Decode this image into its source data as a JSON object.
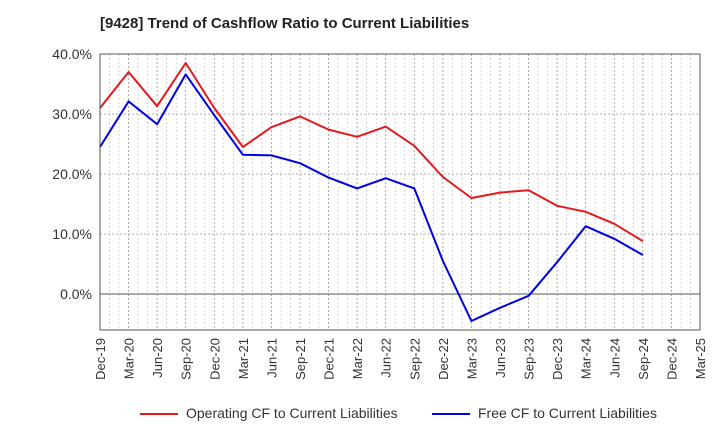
{
  "chart_data": {
    "type": "line",
    "title": "[9428]  Trend of Cashflow Ratio to Current Liabilities",
    "xlabel": "",
    "ylabel": "",
    "ylim": [
      -6,
      40
    ],
    "y_ticks": [
      "40.0%",
      "30.0%",
      "20.0%",
      "10.0%",
      "0.0%"
    ],
    "y_tick_values": [
      40,
      30,
      20,
      10,
      0
    ],
    "categories": [
      "Dec-19",
      "Mar-20",
      "Jun-20",
      "Sep-20",
      "Dec-20",
      "Mar-21",
      "Jun-21",
      "Sep-21",
      "Dec-21",
      "Mar-22",
      "Jun-22",
      "Sep-22",
      "Dec-22",
      "Mar-23",
      "Jun-23",
      "Sep-23",
      "Dec-23",
      "Mar-24",
      "Jun-24",
      "Sep-24",
      "Dec-24",
      "Mar-25"
    ],
    "series": [
      {
        "name": "Operating CF to Current Liabilities",
        "color": "#e31a1c",
        "values": [
          31.0,
          37.0,
          31.3,
          38.5,
          31.0,
          24.5,
          27.8,
          29.6,
          27.4,
          26.2,
          27.9,
          24.7,
          19.5,
          16.0,
          16.9,
          17.3,
          14.7,
          13.7,
          11.7,
          8.8,
          null,
          null
        ]
      },
      {
        "name": "Free CF to Current Liabilities",
        "color": "#0000e6",
        "values": [
          24.5,
          32.1,
          28.3,
          36.6,
          29.8,
          23.2,
          23.1,
          21.8,
          19.4,
          17.6,
          19.3,
          17.6,
          5.5,
          -4.5,
          -2.3,
          -0.3,
          5.3,
          11.3,
          9.2,
          6.5,
          null,
          null
        ]
      }
    ],
    "grid": true,
    "legend_position": "bottom"
  }
}
